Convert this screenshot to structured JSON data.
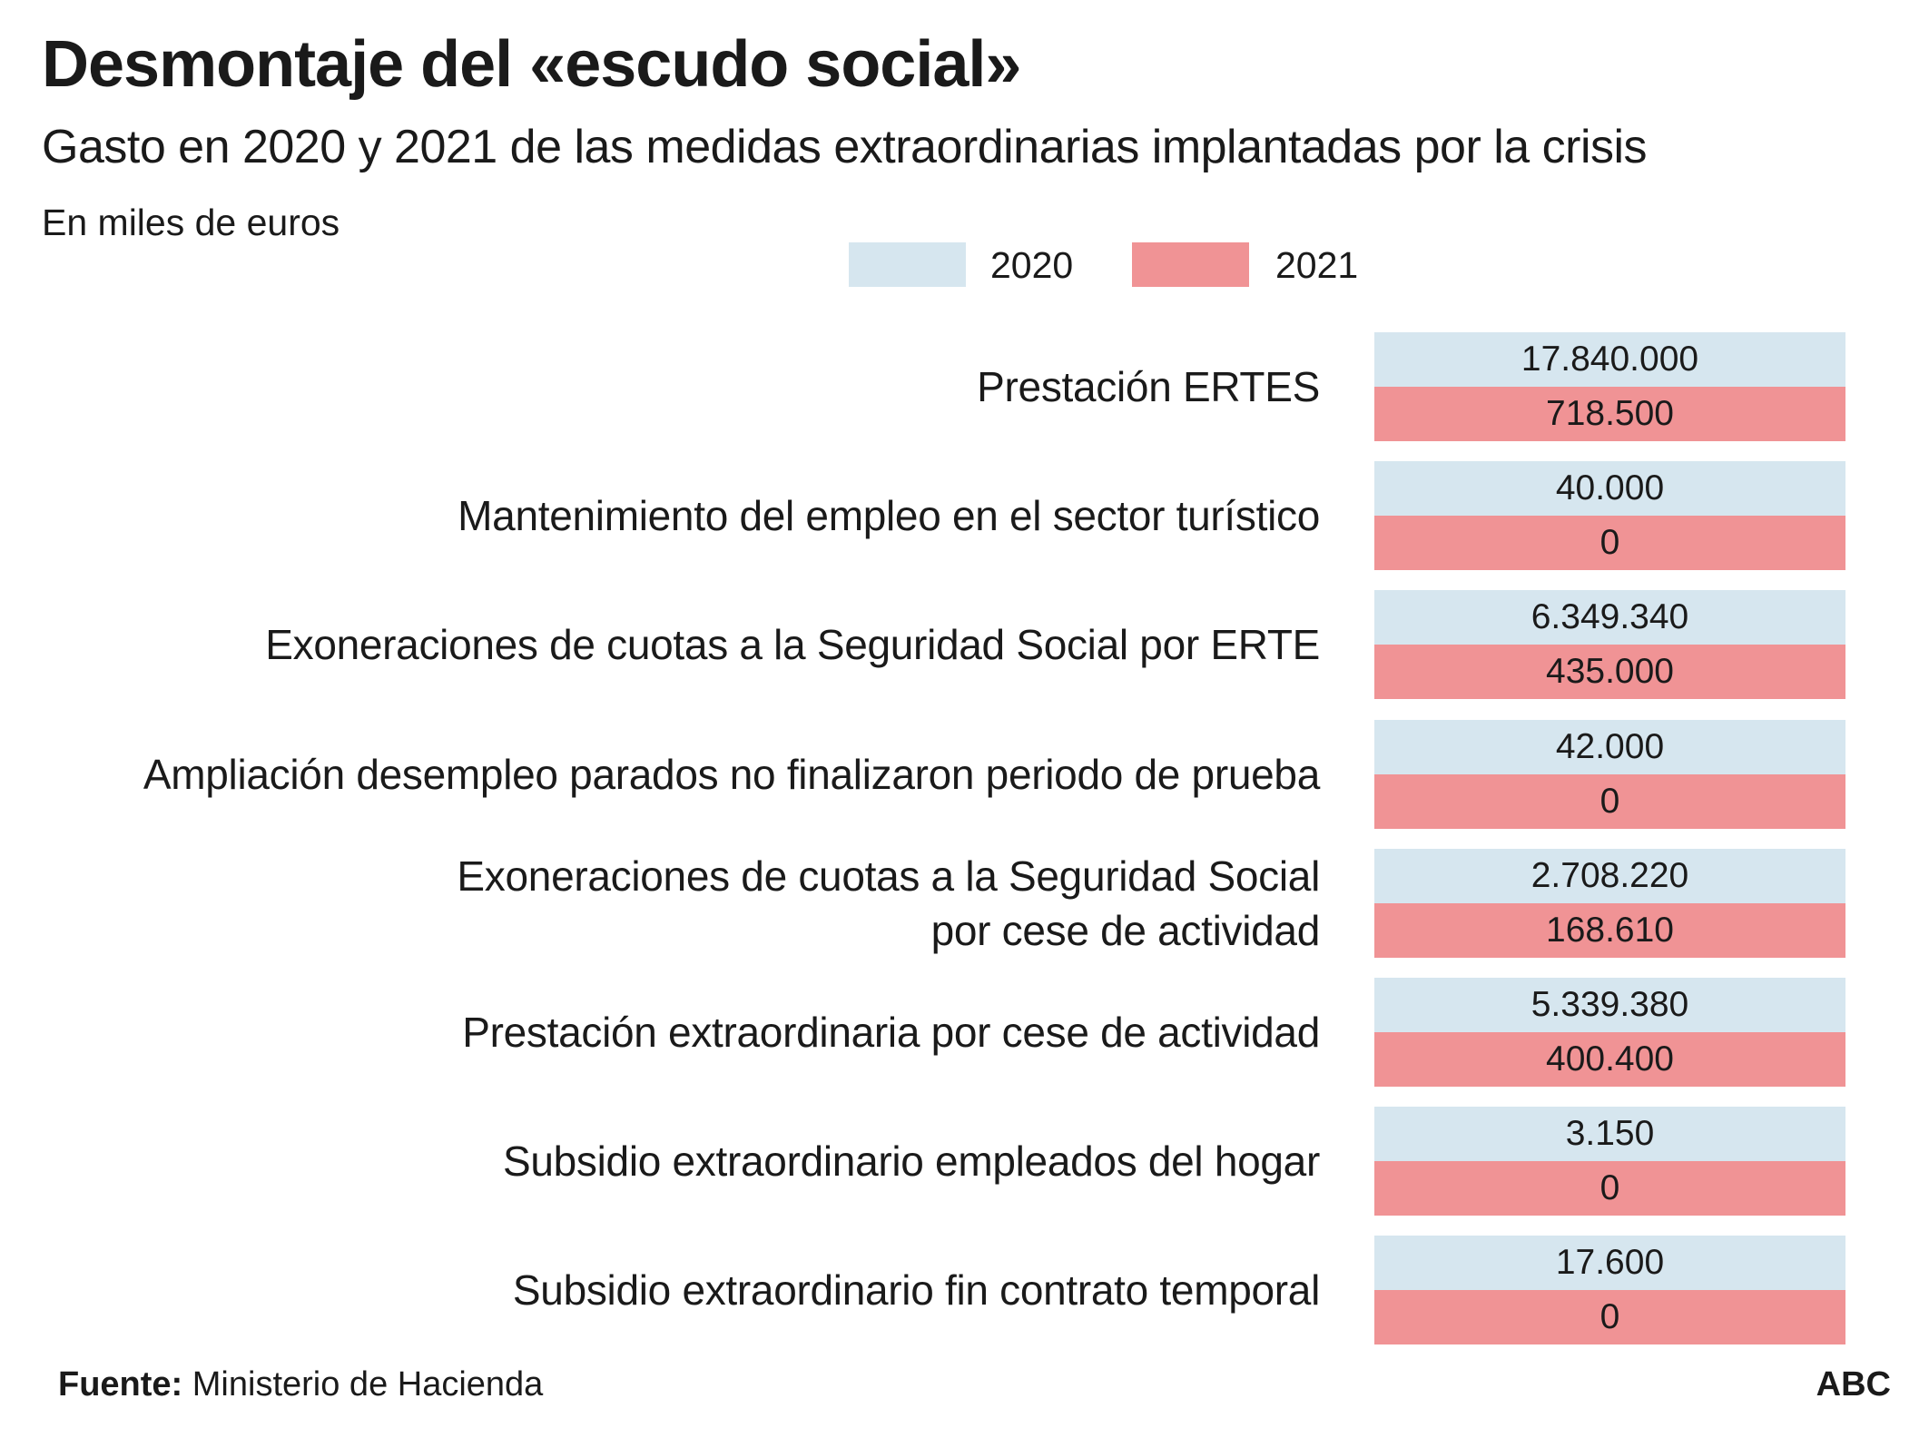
{
  "title": "Desmontaje del «escudo social»",
  "subtitle": "Gasto en 2020 y 2021 de las medidas extraordinarias implantadas por la crisis",
  "unit": "En miles de euros",
  "source_label": "Fuente:",
  "source": "Ministerio de Hacienda",
  "credit": "ABC",
  "colors": {
    "2020": "#d6e6ef",
    "2021": "#f09395"
  },
  "chart_data": {
    "type": "table",
    "title": "Desmontaje del «escudo social»",
    "subtitle": "Gasto en 2020 y 2021 de las medidas extraordinarias implantadas por la crisis",
    "unit": "En miles de euros",
    "legend": [
      "2020",
      "2021"
    ],
    "legend_placement": "top",
    "categories": [
      [
        "Prestación ERTES"
      ],
      [
        "Mantenimiento del empleo en el sector turístico"
      ],
      [
        "Exoneraciones de cuotas a la Seguridad Social por ERTE"
      ],
      [
        "Ampliación desempleo parados no finalizaron periodo de prueba"
      ],
      [
        "Exoneraciones de cuotas a la Seguridad Social",
        "por cese de actividad"
      ],
      [
        "Prestación extraordinaria por cese de actividad"
      ],
      [
        "Subsidio extraordinario empleados del hogar"
      ],
      [
        "Subsidio extraordinario fin contrato temporal"
      ]
    ],
    "series": [
      {
        "name": "2020",
        "values": [
          "17.840.000",
          "40.000",
          "6.349.340",
          "42.000",
          "2.708.220",
          "5.339.380",
          "3.150",
          "17.600"
        ]
      },
      {
        "name": "2021",
        "values": [
          "718.500",
          "0",
          "435.000",
          "0",
          "168.610",
          "400.400",
          "0",
          "0"
        ]
      }
    ]
  }
}
